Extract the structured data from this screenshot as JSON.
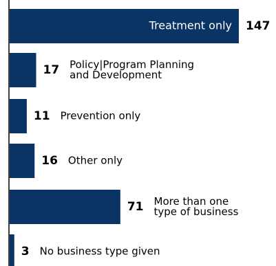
{
  "chart_data": {
    "type": "bar",
    "orientation": "horizontal",
    "title": "",
    "xlabel": "",
    "ylabel": "",
    "categories": [
      [
        "Treatment only"
      ],
      [
        "Policy|Program Planning",
        "and Development"
      ],
      [
        "Prevention only"
      ],
      [
        "Other only"
      ],
      [
        "More than one",
        "type of business"
      ],
      [
        "No business type given"
      ]
    ],
    "values": [
      147,
      17,
      11,
      16,
      71,
      3
    ],
    "value_labels": [
      "147",
      "17",
      "11",
      "16",
      "71",
      "3"
    ],
    "label_inside_bar": [
      true,
      false,
      false,
      false,
      false,
      false
    ],
    "xlim": [
      0,
      147
    ],
    "grid": false,
    "legend": "none",
    "colors": {
      "bar": "#0b3466",
      "axis": "#000000",
      "text": "#000000",
      "inside_text": "#ffffff",
      "background": "#ffffff"
    }
  }
}
